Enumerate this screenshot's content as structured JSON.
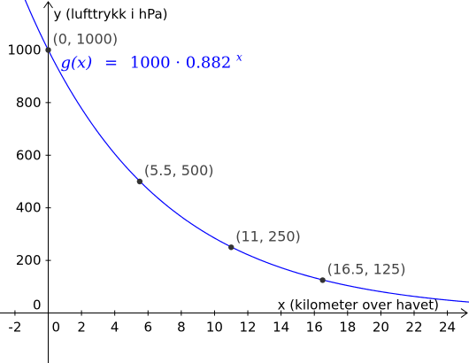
{
  "chart_data": {
    "type": "line",
    "xlabel": "x (kilometer over havet)",
    "ylabel": "y (lufttrykk i hPa)",
    "xlim": [
      -2.9,
      25.3
    ],
    "ylim": [
      -190,
      1190
    ],
    "x_ticks": [
      -2,
      0,
      2,
      4,
      6,
      8,
      10,
      12,
      14,
      16,
      18,
      20,
      22,
      24
    ],
    "x_tick_labels": [
      "-2",
      "0",
      "2",
      "4",
      "6",
      "8",
      "10",
      "12",
      "14",
      "16",
      "18",
      "20",
      "22",
      "24"
    ],
    "y_ticks": [
      0,
      200,
      400,
      600,
      800,
      1000
    ],
    "y_tick_labels": [
      "0",
      "200",
      "400",
      "600",
      "800",
      "1000"
    ],
    "grid": false,
    "series": [
      {
        "name": "g(x) = 1000 · 0.882^x",
        "function": {
          "a": 1000,
          "b": 0.882
        },
        "color": "#0000ff"
      }
    ],
    "points": [
      {
        "x": 0,
        "y": 1000,
        "label": "(0, 1000)"
      },
      {
        "x": 5.5,
        "y": 500,
        "label": "(5.5, 500)"
      },
      {
        "x": 11,
        "y": 250,
        "label": "(11, 250)"
      },
      {
        "x": 16.5,
        "y": 125,
        "label": "(16.5, 125)"
      }
    ],
    "annotation": {
      "name_text": "g(x)",
      "equals_text": "=",
      "base_text": "1000 · 0.882",
      "exponent_text": "x",
      "color": "#0000ff"
    },
    "point_color": "#333333"
  }
}
